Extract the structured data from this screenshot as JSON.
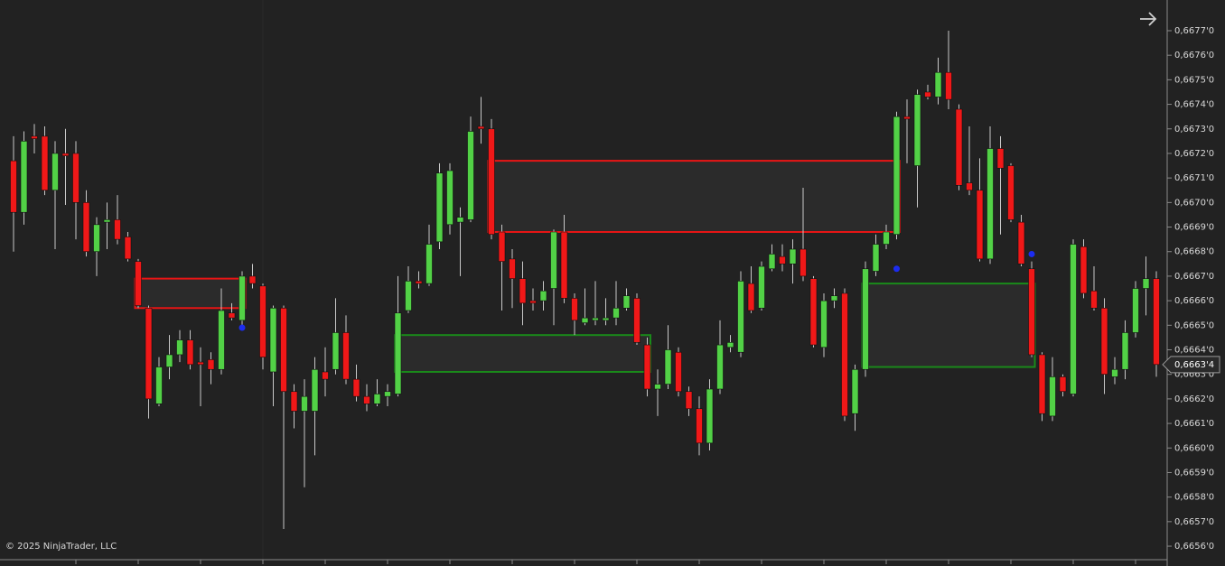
{
  "chart_data": {
    "type": "candlestick",
    "copyright": "© 2025 NinjaTrader, LLC",
    "up_color": "#52d146",
    "down_color": "#f01818",
    "wick_color": "#c8c8c8",
    "grid": false,
    "ylim": [
      0.665545,
      0.667825
    ],
    "yticks": [
      {
        "value": 0.6656,
        "label": "0,6656'0"
      },
      {
        "value": 0.6657,
        "label": "0,6657'0"
      },
      {
        "value": 0.6658,
        "label": "0,6658'0"
      },
      {
        "value": 0.6659,
        "label": "0,6659'0"
      },
      {
        "value": 0.666,
        "label": "0,6660'0"
      },
      {
        "value": 0.6661,
        "label": "0,6661'0"
      },
      {
        "value": 0.6662,
        "label": "0,6662'0"
      },
      {
        "value": 0.6663,
        "label": "0,6663'0"
      },
      {
        "value": 0.6664,
        "label": "0,6664'0"
      },
      {
        "value": 0.6665,
        "label": "0,6665'0"
      },
      {
        "value": 0.6666,
        "label": "0,6666'0"
      },
      {
        "value": 0.6667,
        "label": "0,6667'0"
      },
      {
        "value": 0.6668,
        "label": "0,6668'0"
      },
      {
        "value": 0.6669,
        "label": "0,6669'0"
      },
      {
        "value": 0.667,
        "label": "0,6670'0"
      },
      {
        "value": 0.6671,
        "label": "0,6671'0"
      },
      {
        "value": 0.6672,
        "label": "0,6672'0"
      },
      {
        "value": 0.6673,
        "label": "0,6673'0"
      },
      {
        "value": 0.6674,
        "label": "0,6674'0"
      },
      {
        "value": 0.6675,
        "label": "0,6675'0"
      },
      {
        "value": 0.6676,
        "label": "0,6676'0"
      },
      {
        "value": 0.6677,
        "label": "0,6677'0"
      }
    ],
    "last_price": {
      "value": 0.66634,
      "label": "0,6663'4"
    },
    "open": [
      0.66717,
      0.66696,
      0.66727,
      0.66727,
      0.66705,
      0.6672,
      0.6672,
      0.667,
      0.6668,
      0.66692,
      0.66693,
      0.66686,
      0.66676,
      0.66657,
      0.66618,
      0.66633,
      0.66638,
      0.66644,
      0.66635,
      0.66636,
      0.66632,
      0.66655,
      0.66652,
      0.6667,
      0.66666,
      0.66631,
      0.66657,
      0.66623,
      0.66615,
      0.66615,
      0.66631,
      0.66632,
      0.66647,
      0.66628,
      0.66621,
      0.66618,
      0.66621,
      0.66622,
      0.66656,
      0.66668,
      0.66667,
      0.66684,
      0.66691,
      0.66692,
      0.66693,
      0.66731,
      0.6673,
      0.66688,
      0.66677,
      0.66669,
      0.6666,
      0.6666,
      0.66665,
      0.66688,
      0.66661,
      0.66651,
      0.66652,
      0.66652,
      0.66653,
      0.66657,
      0.66661,
      0.66642,
      0.66624,
      0.66626,
      0.66639,
      0.66623,
      0.66616,
      0.66602,
      0.66624,
      0.66641,
      0.66639,
      0.66667,
      0.66657,
      0.66673,
      0.66678,
      0.66675,
      0.66681,
      0.66669,
      0.66641,
      0.6666,
      0.66663,
      0.66614,
      0.66632,
      0.66672,
      0.66683,
      0.66687,
      0.66735,
      0.66715,
      0.66745,
      0.66743,
      0.66753,
      0.66738,
      0.66708,
      0.66705,
      0.66677,
      0.66722,
      0.66715,
      0.66692,
      0.66673,
      0.66638,
      0.66613,
      0.66629,
      0.66622,
      0.66682,
      0.66664,
      0.66657,
      0.66629,
      0.66632,
      0.66647,
      0.66665,
      0.66669
    ],
    "high": [
      0.66727,
      0.66729,
      0.66732,
      0.66731,
      0.66725,
      0.6673,
      0.66725,
      0.66705,
      0.66694,
      0.667,
      0.66703,
      0.66688,
      0.66677,
      0.66658,
      0.66637,
      0.66646,
      0.66648,
      0.66648,
      0.66641,
      0.66639,
      0.66665,
      0.66659,
      0.66672,
      0.66675,
      0.66667,
      0.66658,
      0.66658,
      0.66626,
      0.66628,
      0.66637,
      0.66641,
      0.66661,
      0.66654,
      0.66634,
      0.66626,
      0.66628,
      0.66626,
      0.6667,
      0.66674,
      0.66672,
      0.66691,
      0.66716,
      0.66716,
      0.66698,
      0.66735,
      0.66743,
      0.66734,
      0.66691,
      0.66681,
      0.66676,
      0.66665,
      0.66668,
      0.66689,
      0.66695,
      0.66663,
      0.66665,
      0.66668,
      0.66661,
      0.66668,
      0.66665,
      0.66663,
      0.66645,
      0.66632,
      0.6665,
      0.66641,
      0.66625,
      0.66621,
      0.66628,
      0.66652,
      0.66646,
      0.66672,
      0.66674,
      0.66676,
      0.66683,
      0.66683,
      0.66685,
      0.66706,
      0.6667,
      0.66663,
      0.66665,
      0.66665,
      0.66634,
      0.66676,
      0.66687,
      0.66691,
      0.66737,
      0.66742,
      0.66746,
      0.66748,
      0.66759,
      0.6677,
      0.6674,
      0.66731,
      0.66718,
      0.66731,
      0.66727,
      0.66716,
      0.66695,
      0.66676,
      0.66639,
      0.66637,
      0.6663,
      0.66685,
      0.66685,
      0.66674,
      0.66661,
      0.66637,
      0.66652,
      0.66668,
      0.66678,
      0.66672
    ],
    "low": [
      0.6668,
      0.66691,
      0.6672,
      0.66703,
      0.66681,
      0.66699,
      0.66685,
      0.66678,
      0.6667,
      0.66681,
      0.66683,
      0.66676,
      0.66657,
      0.66612,
      0.66617,
      0.66628,
      0.66635,
      0.66632,
      0.66617,
      0.66626,
      0.6663,
      0.66652,
      0.6665,
      0.66665,
      0.66632,
      0.66617,
      0.66567,
      0.66608,
      0.66584,
      0.66597,
      0.66621,
      0.6663,
      0.66626,
      0.66619,
      0.66615,
      0.66617,
      0.66617,
      0.66621,
      0.66655,
      0.66665,
      0.66666,
      0.66681,
      0.66687,
      0.6667,
      0.66692,
      0.66724,
      0.66685,
      0.66656,
      0.66657,
      0.6665,
      0.66656,
      0.66656,
      0.6665,
      0.66659,
      0.66646,
      0.6665,
      0.6665,
      0.6665,
      0.6665,
      0.66656,
      0.66642,
      0.66621,
      0.66613,
      0.66624,
      0.66621,
      0.66613,
      0.66597,
      0.66599,
      0.66622,
      0.66639,
      0.66637,
      0.66655,
      0.66656,
      0.66672,
      0.66672,
      0.66667,
      0.66668,
      0.66641,
      0.66637,
      0.66657,
      0.66611,
      0.66607,
      0.66629,
      0.6667,
      0.66681,
      0.66685,
      0.66716,
      0.66698,
      0.66742,
      0.6674,
      0.66738,
      0.66705,
      0.66703,
      0.66676,
      0.66675,
      0.66687,
      0.66692,
      0.66674,
      0.66637,
      0.66611,
      0.66611,
      0.66621,
      0.66621,
      0.66661,
      0.66656,
      0.66622,
      0.66626,
      0.66628,
      0.66645,
      0.66654,
      0.66629
    ],
    "close": [
      0.66696,
      0.66725,
      0.66726,
      0.66705,
      0.6672,
      0.66719,
      0.667,
      0.6668,
      0.66691,
      0.66693,
      0.66685,
      0.66677,
      0.66658,
      0.6662,
      0.66633,
      0.66638,
      0.66644,
      0.66634,
      0.66634,
      0.66632,
      0.66656,
      0.66653,
      0.6667,
      0.66667,
      0.66637,
      0.66657,
      0.66623,
      0.66615,
      0.66621,
      0.66632,
      0.66628,
      0.66647,
      0.66628,
      0.66621,
      0.66618,
      0.66622,
      0.66623,
      0.66655,
      0.66668,
      0.66667,
      0.66683,
      0.66712,
      0.66713,
      0.66694,
      0.66729,
      0.6673,
      0.66687,
      0.66676,
      0.66669,
      0.66659,
      0.66659,
      0.66664,
      0.66688,
      0.66661,
      0.66652,
      0.66653,
      0.66653,
      0.66653,
      0.66657,
      0.66662,
      0.66643,
      0.66624,
      0.66626,
      0.6664,
      0.66623,
      0.66616,
      0.66602,
      0.66624,
      0.66642,
      0.66643,
      0.66668,
      0.66656,
      0.66674,
      0.66679,
      0.66675,
      0.66681,
      0.6667,
      0.66642,
      0.6666,
      0.66662,
      0.66613,
      0.66632,
      0.66673,
      0.66683,
      0.66688,
      0.66735,
      0.66734,
      0.66744,
      0.66743,
      0.66753,
      0.66742,
      0.66707,
      0.66705,
      0.66677,
      0.66722,
      0.66714,
      0.66693,
      0.66675,
      0.66638,
      0.66614,
      0.66629,
      0.66623,
      0.66683,
      0.66663,
      0.66657,
      0.6663,
      0.66632,
      0.66647,
      0.66665,
      0.66669,
      0.66634
    ],
    "zones": [
      {
        "color": "#e81515",
        "start": 12,
        "end": 22,
        "top": 0.66669,
        "bottom": 0.66657
      },
      {
        "color": "#e81515",
        "start": 46,
        "end": 85,
        "top": 0.66717,
        "bottom": 0.66688
      },
      {
        "color": "#1a8a1a",
        "start": 37,
        "end": 61,
        "top": 0.66646,
        "bottom": 0.66631
      },
      {
        "color": "#1a8a1a",
        "start": 82,
        "end": 98,
        "top": 0.66667,
        "bottom": 0.66633
      }
    ],
    "markers": [
      {
        "index": 22,
        "price": 0.66649
      },
      {
        "index": 85,
        "price": 0.66673
      },
      {
        "index": 98,
        "price": 0.66679
      }
    ],
    "marker_color": "#1c2cf0"
  }
}
